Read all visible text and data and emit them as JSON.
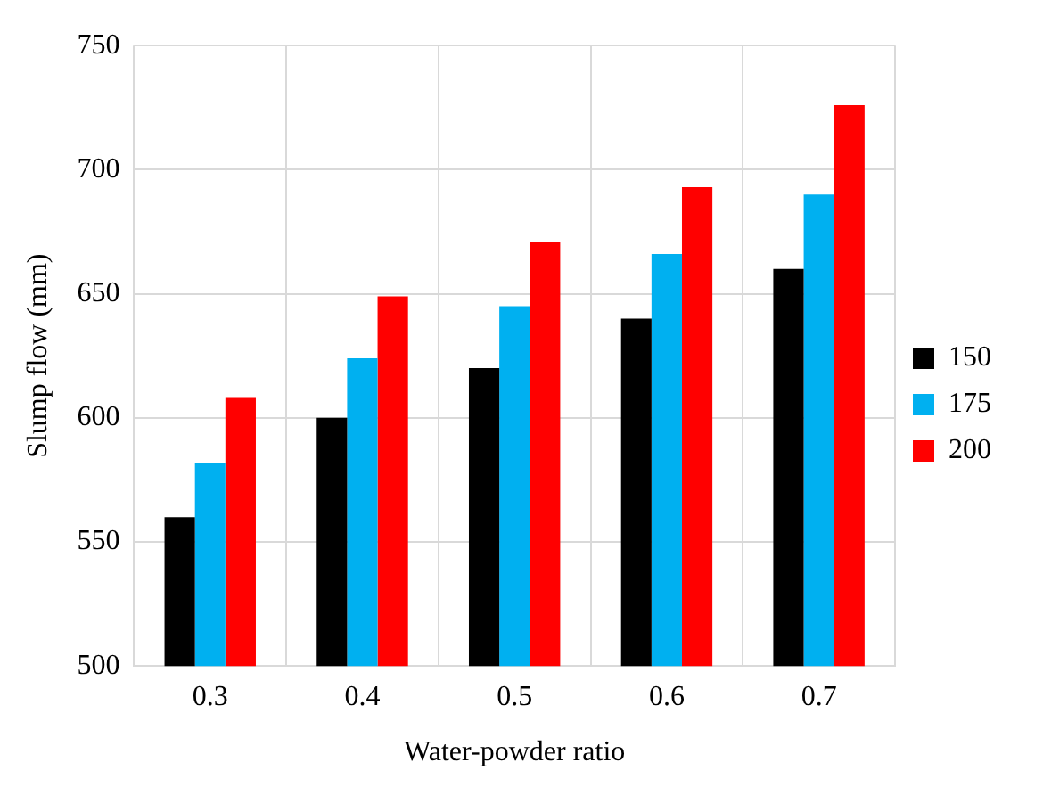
{
  "chart_data": {
    "type": "bar",
    "xlabel": "Water-powder ratio",
    "ylabel": "Slump flow (mm)",
    "categories": [
      "0.3",
      "0.4",
      "0.5",
      "0.6",
      "0.7"
    ],
    "series": [
      {
        "name": "150",
        "color": "#000000",
        "values": [
          560,
          600,
          620,
          640,
          660
        ]
      },
      {
        "name": "175",
        "color": "#00b0f0",
        "values": [
          582,
          624,
          645,
          666,
          690
        ]
      },
      {
        "name": "200",
        "color": "#ff0000",
        "values": [
          608,
          649,
          671,
          693,
          726
        ]
      }
    ],
    "ylim": [
      500,
      750
    ],
    "yticks": [
      500,
      550,
      600,
      650,
      700,
      750
    ],
    "grid": true,
    "legend": "right"
  }
}
